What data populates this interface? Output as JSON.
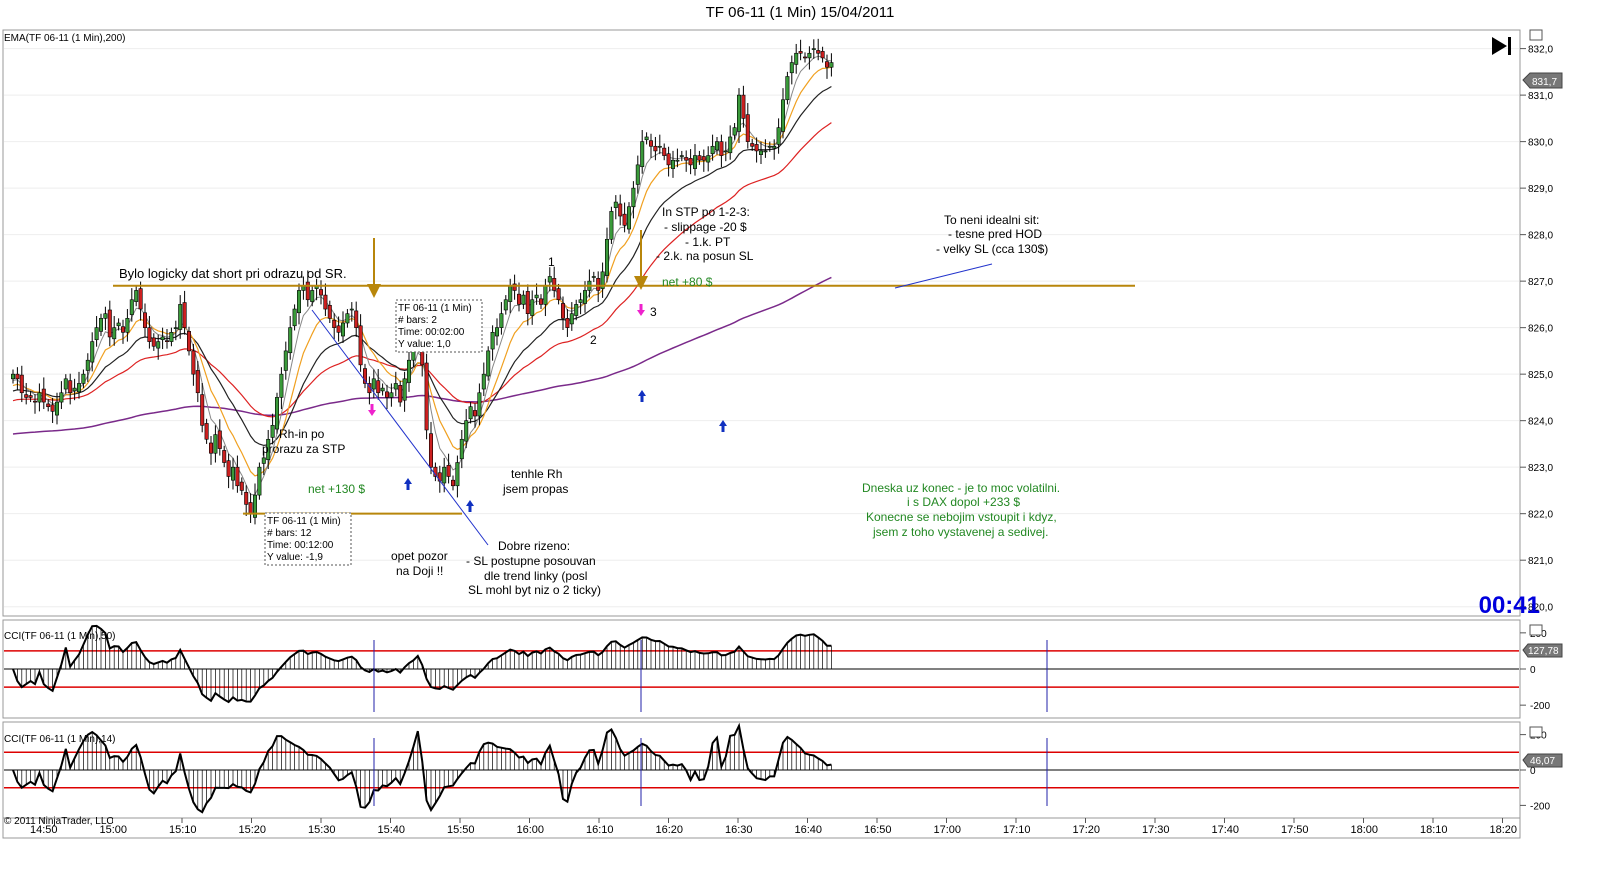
{
  "title": "TF 06-11 (1 Min)  15/04/2011",
  "panels": {
    "main_label": "EMA(TF 06-11 (1 Min),200)",
    "cci50_label": "CCI(TF 06-11 (1 Min),50)",
    "cci14_label": "CCI(TF 06-11 (1 Min),14)"
  },
  "timer": "00:41",
  "copyright": "© 2011 NinjaTrader, LLC",
  "price_tag": "831,7",
  "cci50_tag": "127,78",
  "cci14_tag": "46,07",
  "annotations": {
    "short_note": "Bylo logicky dat short pri odrazu od SR.",
    "rh_in_1": "Rh-in po",
    "rh_in_2": "prorazu za STP",
    "net130": "net +130 $",
    "doji_1": "opet pozor",
    "doji_2": "na Doji !!",
    "good_1": "Dobre rizeno:",
    "good_2": "- SL postupne posouvan",
    "good_3": "dle trend linky (posl",
    "good_4": "SL mohl byt niz o 2 ticky)",
    "missed_1": "tenhle Rh",
    "missed_2": "jsem propas",
    "stp_1": "In STP po 1-2-3:",
    "stp_2": "- slippage -20 $",
    "stp_3": "- 1.k. PT",
    "stp_4": "- 2.k. na posun SL",
    "net80": "net +80 $",
    "n1": "1",
    "n2": "2",
    "n3": "3",
    "ideal_1": "To neni idealni sit:",
    "ideal_2": "- tesne pred HOD",
    "ideal_3": "- velky SL (cca 130$)",
    "end_1": "Dneska uz konec - je to moc volatilni.",
    "end_2": "i s DAX dopol +233 $",
    "end_3": "Konecne se nebojim vstoupit i kdyz,",
    "end_4": "jsem z toho vystavenej a sedivej."
  },
  "info_boxes": [
    {
      "title": "TF 06-11 (1 Min)",
      "bars": "# bars:   2",
      "time": "Time:    00:02:00",
      "y": "Y value:  1,0"
    },
    {
      "title": "TF 06-11 (1 Min)",
      "bars": "# bars:   12",
      "time": "Time:    00:12:00",
      "y": "Y value:  -1,9"
    }
  ],
  "colors": {
    "up_candle": "#3a9a3a",
    "down_candle": "#cc2020",
    "sr_line": "#b8860b",
    "ema200": "#7a2a8a",
    "ema_red": "#dd2222",
    "ema_black": "#222222",
    "ema_orange": "#f0a020",
    "ema_gray": "#888888",
    "cci_band": "#dd0000",
    "annotation_green": "#228822",
    "arrow_blue": "#1030c0",
    "arrow_magenta": "#ee22cc"
  },
  "chart_data": {
    "type": "candlestick",
    "instrument": "TF 06-11 (1 Min)",
    "date": "15/04/2011",
    "x_ticks": [
      "14:50",
      "15:00",
      "15:10",
      "15:20",
      "15:30",
      "15:40",
      "15:50",
      "16:00",
      "16:10",
      "16:20",
      "16:30",
      "16:40",
      "16:50",
      "17:00",
      "17:10",
      "17:20",
      "17:30",
      "17:40",
      "17:50",
      "18:00",
      "18:10",
      "18:20"
    ],
    "y_ticks": [
      "832,0",
      "831,0",
      "830,0",
      "829,0",
      "828,0",
      "827,0",
      "826,0",
      "825,0",
      "824,0",
      "823,0",
      "822,0",
      "821,0",
      "820,0"
    ],
    "ylim": [
      819.8,
      832.4
    ],
    "sr_level": 826.9,
    "lower_level": 822.0,
    "closes": [
      825.0,
      824.9,
      824.6,
      824.5,
      824.5,
      824.4,
      824.6,
      824.4,
      824.3,
      824.2,
      824.4,
      824.6,
      824.9,
      824.6,
      824.7,
      824.8,
      825.0,
      825.3,
      825.7,
      826.0,
      826.2,
      826.3,
      825.8,
      826.0,
      826.1,
      825.9,
      826.2,
      826.6,
      826.8,
      826.4,
      826.0,
      825.7,
      825.6,
      825.7,
      825.8,
      825.7,
      825.9,
      826.0,
      826.5,
      826.0,
      825.5,
      825.0,
      824.6,
      823.9,
      823.6,
      823.3,
      823.7,
      823.4,
      823.1,
      822.8,
      823.0,
      822.6,
      822.5,
      822.2,
      822.0,
      822.4,
      823.0,
      823.2,
      823.6,
      823.9,
      824.5,
      825.0,
      825.5,
      826.0,
      826.4,
      826.8,
      826.9,
      826.6,
      826.8,
      826.9,
      826.7,
      826.4,
      826.2,
      826.0,
      825.9,
      826.1,
      826.3,
      826.4,
      826.0,
      825.2,
      824.8,
      824.6,
      824.9,
      824.6,
      824.7,
      824.5,
      824.6,
      824.8,
      824.4,
      824.9,
      825.3,
      825.6,
      826.1,
      825.2,
      823.8,
      823.0,
      822.8,
      822.7,
      823.0,
      822.8,
      822.6,
      823.1,
      823.6,
      824.0,
      824.3,
      824.1,
      824.6,
      825.0,
      825.5,
      825.9,
      826.0,
      826.3,
      826.6,
      826.9,
      826.8,
      826.5,
      826.7,
      826.3,
      826.6,
      826.7,
      826.5,
      826.9,
      827.1,
      826.8,
      826.6,
      826.2,
      826.0,
      826.3,
      826.5,
      826.6,
      826.8,
      827.0,
      827.1,
      826.8,
      827.2,
      827.9,
      828.5,
      828.7,
      828.4,
      828.2,
      828.6,
      829.0,
      829.5,
      830.0,
      830.1,
      829.9,
      829.8,
      829.9,
      829.7,
      829.5,
      829.6,
      829.6,
      829.7,
      829.6,
      829.5,
      829.7,
      829.6,
      829.6,
      829.7,
      829.9,
      830.0,
      829.7,
      829.8,
      830.1,
      830.3,
      831.0,
      830.5,
      830.0,
      829.9,
      829.8,
      829.8,
      829.8,
      829.9,
      829.9,
      830.3,
      830.9,
      831.4,
      831.7,
      831.9,
      831.9,
      831.8,
      831.9,
      832.0,
      831.9,
      831.8,
      831.6,
      831.7
    ],
    "cci50_ylim": [
      -260,
      260
    ],
    "cci50_levels": [
      100,
      0,
      -100
    ],
    "cci50_ticks": [
      "200",
      "0",
      "-200"
    ],
    "cci14_ylim": [
      -260,
      260
    ],
    "cci14_levels": [
      100,
      0,
      -100
    ],
    "cci14_ticks": [
      "200",
      "0",
      "-200"
    ]
  }
}
